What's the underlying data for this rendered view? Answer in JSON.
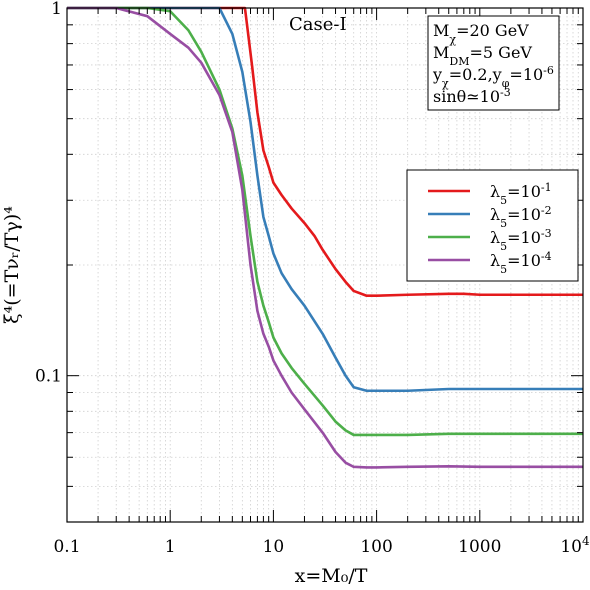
{
  "chart_data": {
    "type": "line",
    "title": "Case-I",
    "xlabel": "x=M₀/T",
    "ylabel": "ξ⁴(=Tνᵣ/Tγ)⁴",
    "x_scale": "log",
    "y_scale": "log",
    "xlim": [
      0.1,
      10000
    ],
    "ylim": [
      0.04,
      1
    ],
    "grid": true,
    "legend_position": "right",
    "x_ticks": [
      {
        "value": 0.1,
        "label": "0.1"
      },
      {
        "value": 1,
        "label": "1"
      },
      {
        "value": 10,
        "label": "10"
      },
      {
        "value": 100,
        "label": "100"
      },
      {
        "value": 1000,
        "label": "1000"
      }
    ],
    "x_tick_last": {
      "value": 10000,
      "base": "10",
      "exp": "4"
    },
    "y_ticks": [
      {
        "value": 0.1,
        "label": "0.1"
      },
      {
        "value": 1,
        "label": "1"
      }
    ],
    "annotations": {
      "mchi": {
        "base": "M",
        "sub": "χ",
        "rest": "=20 GeV"
      },
      "mdm": {
        "base": "M",
        "sub": "DM",
        "rest": "=5 GeV"
      },
      "ychi": {
        "a": "y",
        "a_sub": "χ",
        "b": "=0.2,y",
        "b_sub": "φ",
        "c": "=10",
        "c_sup": "-6"
      },
      "sin": {
        "text": "sinθ≃10",
        "sup": "-3"
      }
    },
    "series": [
      {
        "name": "λ5=10-1",
        "label_base": "λ",
        "label_sub": "5",
        "label_mid": "=10",
        "label_sup": "-1",
        "color": "#e41a1c",
        "x": [
          0.1,
          1,
          3,
          5.3,
          6.2,
          7,
          8,
          9,
          10,
          12,
          15,
          20,
          25,
          30,
          40,
          50,
          60,
          80,
          100,
          200,
          500,
          700,
          1000,
          3000,
          10000
        ],
        "y": [
          1,
          1,
          1,
          1,
          0.7,
          0.52,
          0.41,
          0.37,
          0.335,
          0.31,
          0.285,
          0.26,
          0.24,
          0.22,
          0.195,
          0.18,
          0.17,
          0.165,
          0.165,
          0.166,
          0.167,
          0.167,
          0.166,
          0.166,
          0.166
        ]
      },
      {
        "name": "λ5=10-2",
        "label_base": "λ",
        "label_sub": "5",
        "label_mid": "=10",
        "label_sup": "-2",
        "color": "#377eb8",
        "x": [
          0.1,
          1,
          2,
          3,
          4,
          5,
          6,
          7,
          8,
          9,
          10,
          12,
          15,
          20,
          30,
          40,
          50,
          60,
          80,
          100,
          200,
          500,
          1000,
          3000,
          10000
        ],
        "y": [
          1,
          1,
          1,
          1,
          0.85,
          0.67,
          0.49,
          0.35,
          0.27,
          0.24,
          0.215,
          0.19,
          0.172,
          0.155,
          0.13,
          0.112,
          0.1,
          0.093,
          0.091,
          0.091,
          0.091,
          0.092,
          0.092,
          0.092,
          0.092
        ]
      },
      {
        "name": "λ5=10-3",
        "label_base": "λ",
        "label_sub": "5",
        "label_mid": "=10",
        "label_sup": "-3",
        "color": "#4daf4a",
        "x": [
          0.1,
          0.6,
          1,
          1.5,
          2,
          3,
          4,
          5,
          6,
          7,
          8,
          9,
          10,
          12,
          15,
          20,
          30,
          40,
          50,
          60,
          80,
          100,
          200,
          500,
          1000,
          10000
        ],
        "y": [
          1,
          1,
          0.98,
          0.87,
          0.76,
          0.6,
          0.47,
          0.35,
          0.24,
          0.18,
          0.155,
          0.14,
          0.127,
          0.115,
          0.105,
          0.095,
          0.083,
          0.075,
          0.071,
          0.069,
          0.069,
          0.069,
          0.069,
          0.0695,
          0.0695,
          0.0695
        ]
      },
      {
        "name": "λ5=10-4",
        "label_base": "λ",
        "label_sub": "5",
        "label_mid": "=10",
        "label_sup": "-4",
        "color": "#984ea3",
        "x": [
          0.1,
          0.3,
          0.6,
          1,
          1.5,
          2,
          3,
          4,
          5,
          6,
          7,
          8,
          9,
          10,
          12,
          15,
          20,
          30,
          40,
          50,
          60,
          80,
          100,
          200,
          500,
          1000,
          10000
        ],
        "y": [
          1,
          1,
          0.95,
          0.85,
          0.78,
          0.71,
          0.58,
          0.46,
          0.32,
          0.2,
          0.15,
          0.13,
          0.12,
          0.11,
          0.1,
          0.09,
          0.081,
          0.07,
          0.062,
          0.058,
          0.0565,
          0.0563,
          0.0563,
          0.0565,
          0.0567,
          0.0565,
          0.0565
        ]
      }
    ]
  }
}
